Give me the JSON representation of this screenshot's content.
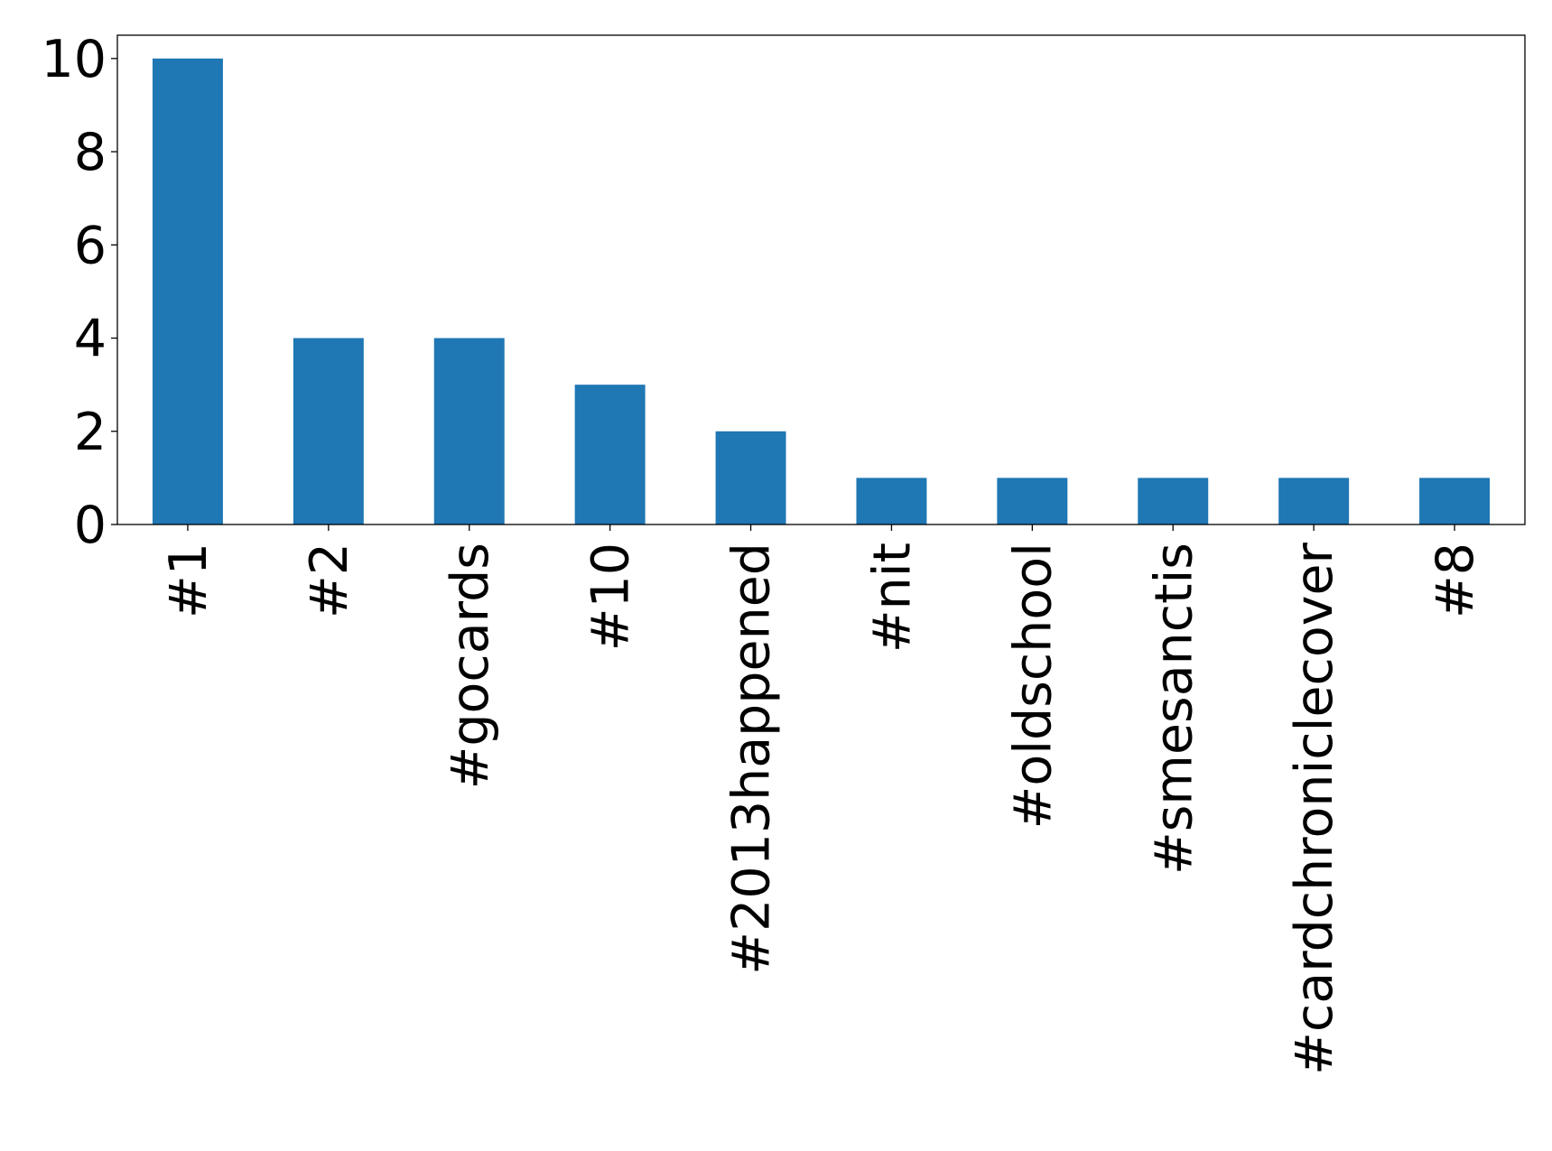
{
  "chart_data": {
    "type": "bar",
    "title": "",
    "xlabel": "",
    "ylabel": "",
    "categories": [
      "#1",
      "#2",
      "#gocards",
      "#10",
      "#2013happened",
      "#nit",
      "#oldschool",
      "#smesanctis",
      "#cardchroniclecover",
      "#8"
    ],
    "values": [
      10,
      4,
      4,
      3,
      2,
      1,
      1,
      1,
      1,
      1
    ],
    "ylim": [
      0,
      10.5
    ],
    "yticks": [
      0,
      2,
      4,
      6,
      8,
      10
    ],
    "grid": false,
    "legend": "none",
    "bar_color": "#1f77b4"
  }
}
